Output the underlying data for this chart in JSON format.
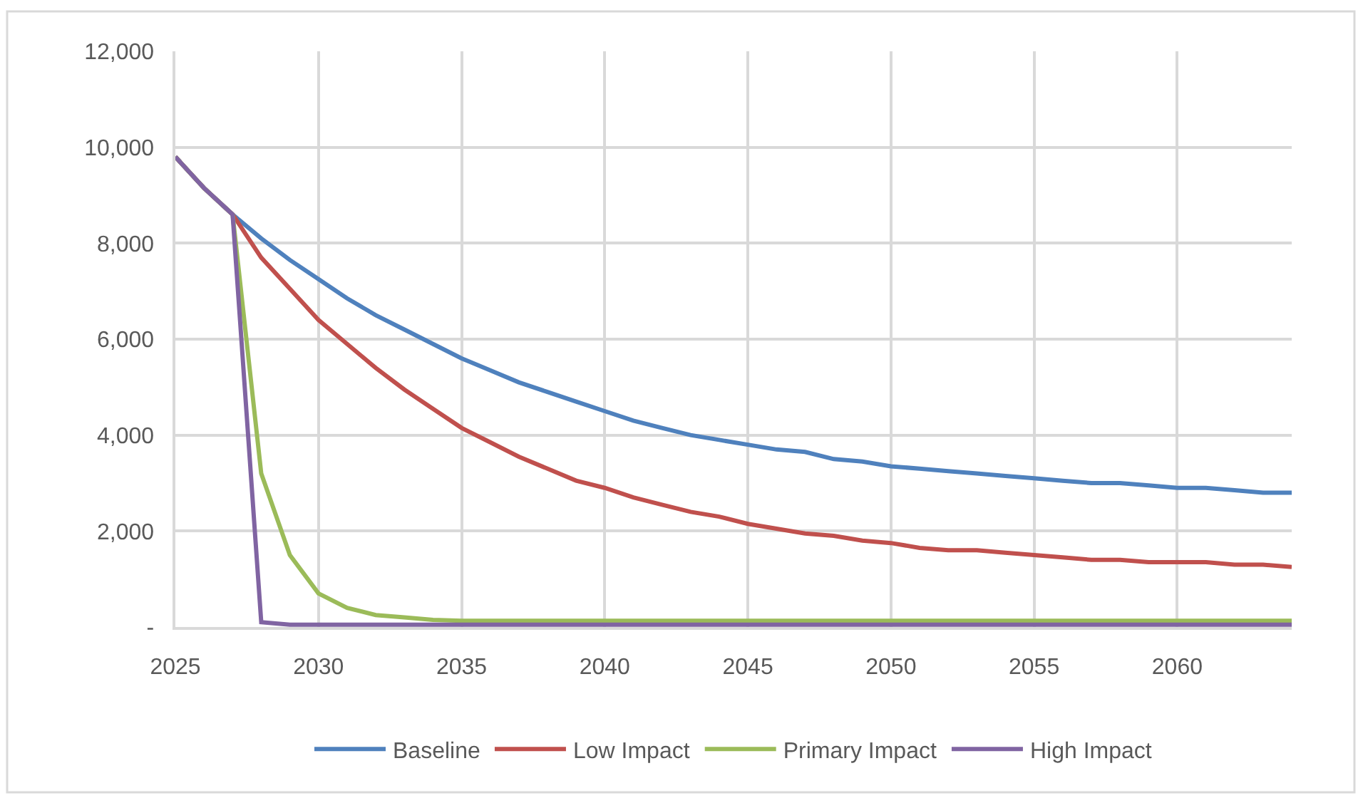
{
  "chart_data": {
    "type": "line",
    "x": [
      2025,
      2026,
      2027,
      2028,
      2029,
      2030,
      2031,
      2032,
      2033,
      2034,
      2035,
      2036,
      2037,
      2038,
      2039,
      2040,
      2041,
      2042,
      2043,
      2044,
      2045,
      2046,
      2047,
      2048,
      2049,
      2050,
      2051,
      2052,
      2053,
      2054,
      2055,
      2056,
      2057,
      2058,
      2059,
      2060,
      2061,
      2062,
      2063,
      2064
    ],
    "series": [
      {
        "name": "Baseline",
        "color": "#4f81bd",
        "values": [
          9800,
          9150,
          8600,
          8100,
          7650,
          7250,
          6850,
          6500,
          6200,
          5900,
          5600,
          5350,
          5100,
          4900,
          4700,
          4500,
          4300,
          4150,
          4000,
          3900,
          3800,
          3700,
          3650,
          3500,
          3450,
          3350,
          3300,
          3250,
          3200,
          3150,
          3100,
          3050,
          3000,
          3000,
          2950,
          2900,
          2900,
          2850,
          2800,
          2800
        ]
      },
      {
        "name": "Low Impact",
        "color": "#c0504d",
        "values": [
          9800,
          9150,
          8600,
          7700,
          7050,
          6400,
          5900,
          5400,
          4950,
          4550,
          4150,
          3850,
          3550,
          3300,
          3050,
          2900,
          2700,
          2550,
          2400,
          2300,
          2150,
          2050,
          1950,
          1900,
          1800,
          1750,
          1650,
          1600,
          1600,
          1550,
          1500,
          1450,
          1400,
          1400,
          1350,
          1350,
          1350,
          1300,
          1300,
          1250
        ]
      },
      {
        "name": "Primary Impact",
        "color": "#9bbb59",
        "values": [
          9800,
          9150,
          8600,
          3200,
          1500,
          700,
          400,
          250,
          200,
          150,
          130,
          130,
          130,
          130,
          130,
          130,
          130,
          130,
          130,
          130,
          130,
          130,
          130,
          130,
          130,
          130,
          130,
          130,
          130,
          130,
          130,
          130,
          130,
          130,
          130,
          130,
          130,
          130,
          130,
          130
        ]
      },
      {
        "name": "High Impact",
        "color": "#8064a2",
        "values": [
          9800,
          9150,
          8600,
          100,
          50,
          50,
          50,
          50,
          50,
          50,
          50,
          50,
          50,
          50,
          50,
          50,
          50,
          50,
          50,
          50,
          50,
          50,
          50,
          50,
          50,
          50,
          50,
          50,
          50,
          50,
          50,
          50,
          50,
          50,
          50,
          50,
          50,
          50,
          50,
          50
        ]
      }
    ],
    "xlim": [
      2025,
      2064
    ],
    "xticks": [
      2025,
      2030,
      2035,
      2040,
      2045,
      2050,
      2055,
      2060
    ],
    "ylim": [
      0,
      12000
    ],
    "yticks": [
      {
        "value": 0,
        "label": "-"
      },
      {
        "value": 2000,
        "label": "2,000"
      },
      {
        "value": 4000,
        "label": "4,000"
      },
      {
        "value": 6000,
        "label": "6,000"
      },
      {
        "value": 8000,
        "label": "8,000"
      },
      {
        "value": 10000,
        "label": "10,000"
      },
      {
        "value": 12000,
        "label": "12,000"
      }
    ],
    "grid": true,
    "legend": "bottom",
    "line_style": "solid"
  }
}
